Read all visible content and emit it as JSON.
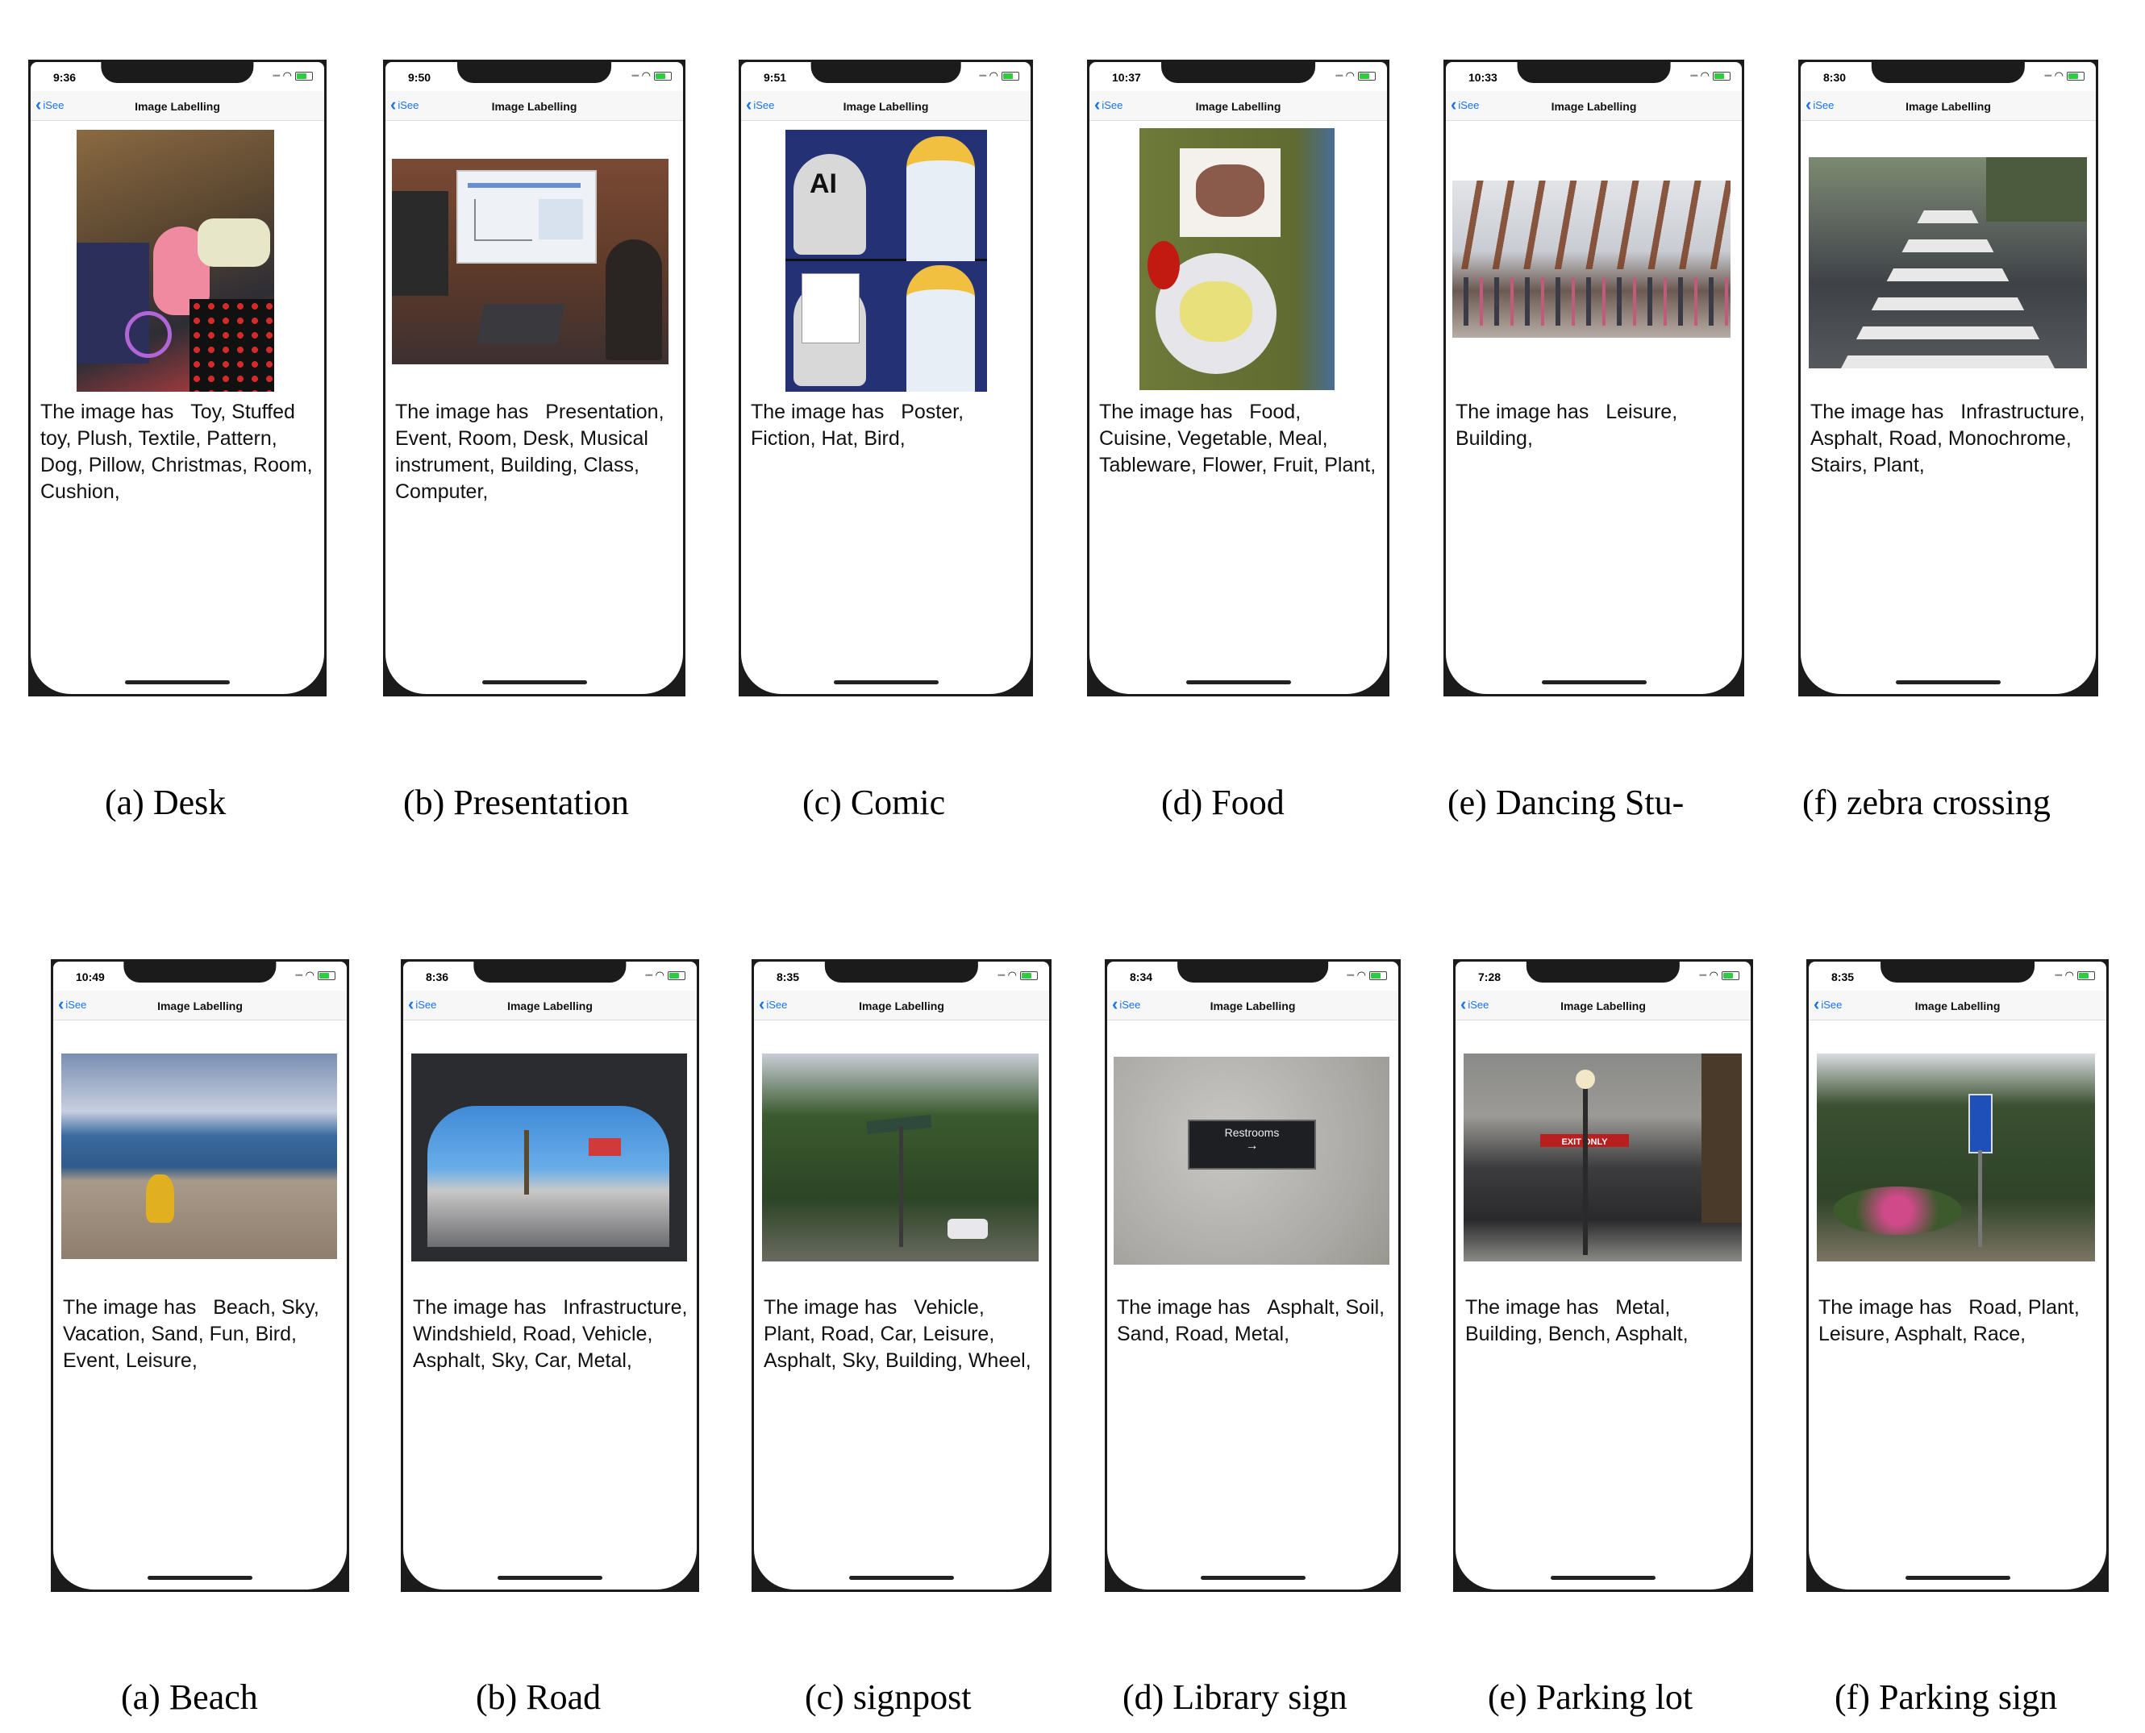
{
  "app": {
    "back_label": "iSee",
    "title": "Image Labelling",
    "caption_prefix": "The image has"
  },
  "rows": [
    {
      "panels": [
        {
          "label": "(a)  Desk",
          "time": "9:36",
          "labels": "Toy, Stuffed toy, Plush, Textile, Pattern, Dog, Pillow, Christmas, Room, Cushion,"
        },
        {
          "label": "(b)  Presentation",
          "time": "9:50",
          "labels": "Presentation, Event, Room, Desk, Musical instrument, Building, Class, Computer,"
        },
        {
          "label": "(c)  Comic",
          "time": "9:51",
          "labels": "Poster, Fiction, Hat, Bird,",
          "comic_text": "AI"
        },
        {
          "label": "(d)  Food",
          "time": "10:37",
          "labels": "Food, Cuisine, Vegetable, Meal, Tableware, Flower, Fruit, Plant,"
        },
        {
          "label": "(e)   Dancing   Stu-",
          "time": "10:33",
          "labels": "Leisure, Building,"
        },
        {
          "label": "(f)  zebra crossing",
          "time": "8:30",
          "labels": "Infrastructure, Asphalt, Road, Monochrome, Stairs, Plant,"
        }
      ]
    },
    {
      "panels": [
        {
          "label": "(a)  Beach",
          "time": "10:49",
          "labels": "Beach, Sky, Vacation, Sand, Fun, Bird, Event, Leisure,"
        },
        {
          "label": "(b)  Road",
          "time": "8:36",
          "labels": "Infrastructure, Windshield, Road, Vehicle, Asphalt, Sky, Car, Metal,"
        },
        {
          "label": "(c)  signpost",
          "time": "8:35",
          "labels": "Vehicle, Plant, Road, Car, Leisure, Asphalt, Sky, Building, Wheel,"
        },
        {
          "label": "(d)  Library sign",
          "time": "8:34",
          "labels": "Asphalt, Soil, Sand, Road, Metal,",
          "sign_text": "Restrooms"
        },
        {
          "label": "(e)  Parking lot",
          "time": "7:28",
          "labels": "Metal, Building, Bench, Asphalt,",
          "sign_text": "EXIT ONLY"
        },
        {
          "label": "(f)  Parking sign",
          "time": "8:35",
          "labels": "Road, Plant, Leisure, Asphalt, Race,"
        }
      ]
    }
  ]
}
